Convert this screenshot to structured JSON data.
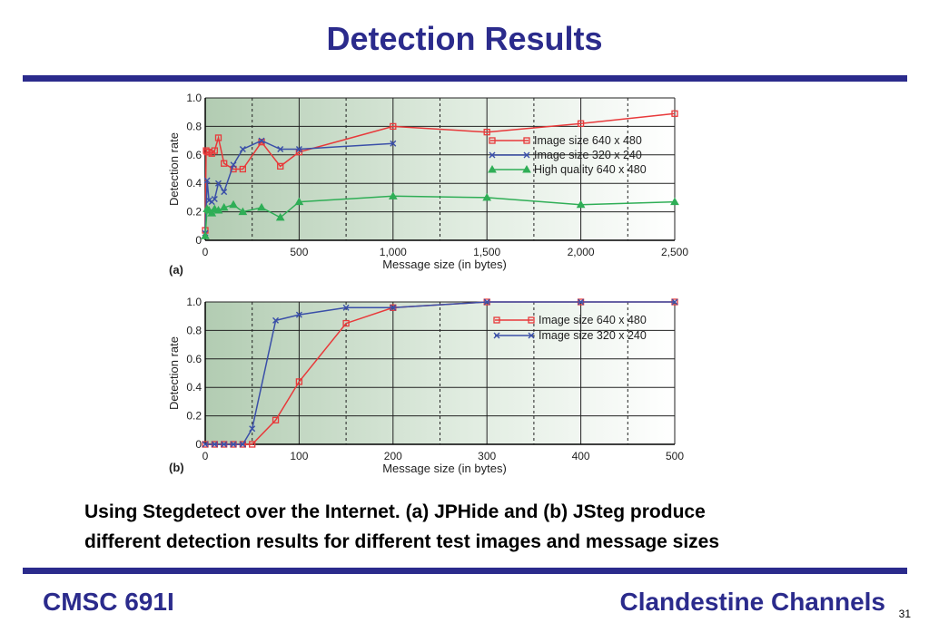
{
  "slide": {
    "title": "Detection Results",
    "caption_line1": "Using Stegdetect over the Internet. (a) JPHide and (b) JSteg produce",
    "caption_line2": "different detection results for different test images and message sizes",
    "footer_left": "CMSC 691I",
    "footer_right": "Clandestine Channels",
    "page_number": "31"
  },
  "colors": {
    "accent": "#2b2b8c",
    "red": "#e8393a",
    "blue": "#3a4fa8",
    "green": "#2fae56"
  },
  "chart_data": [
    {
      "type": "line",
      "panel_label": "(a)",
      "xlabel": "Message size (in bytes)",
      "ylabel": "Detection rate",
      "xlim": [
        0,
        2500
      ],
      "ylim": [
        0,
        1.0
      ],
      "x_ticks": [
        0,
        500,
        1000,
        1500,
        2000,
        2500
      ],
      "x_tick_labels": [
        "0",
        "500",
        "1,000",
        "1,500",
        "2,000",
        "2,500"
      ],
      "y_ticks": [
        0,
        0.2,
        0.4,
        0.6,
        0.8,
        1.0
      ],
      "y_tick_labels": [
        "0",
        "0.2",
        "0.4",
        "0.6",
        "0.8",
        "1.0"
      ],
      "grid": true,
      "legend_position": "right",
      "series": [
        {
          "name": "Image size 640 x 480",
          "color": "#e8393a",
          "marker": "square",
          "x": [
            0,
            5,
            10,
            20,
            35,
            50,
            70,
            100,
            150,
            200,
            300,
            400,
            500,
            1000,
            1500,
            2000,
            2500
          ],
          "y": [
            0.07,
            0.63,
            0.62,
            0.62,
            0.61,
            0.63,
            0.72,
            0.54,
            0.5,
            0.5,
            0.69,
            0.52,
            0.62,
            0.8,
            0.76,
            0.82,
            0.89
          ]
        },
        {
          "name": "Image size 320 x 240",
          "color": "#3a4fa8",
          "marker": "x",
          "x": [
            0,
            10,
            20,
            35,
            50,
            70,
            100,
            150,
            200,
            300,
            400,
            500,
            1000
          ],
          "y": [
            0.05,
            0.42,
            0.28,
            0.27,
            0.29,
            0.4,
            0.34,
            0.53,
            0.64,
            0.7,
            0.64,
            0.64,
            0.68
          ]
        },
        {
          "name": "High quality 640 x 480",
          "color": "#2fae56",
          "marker": "triangle",
          "x": [
            0,
            10,
            20,
            35,
            50,
            70,
            100,
            150,
            200,
            300,
            400,
            500,
            1000,
            1500,
            2000,
            2500
          ],
          "y": [
            0.03,
            0.22,
            0.21,
            0.19,
            0.22,
            0.21,
            0.23,
            0.25,
            0.2,
            0.23,
            0.16,
            0.27,
            0.31,
            0.3,
            0.25,
            0.27
          ]
        }
      ]
    },
    {
      "type": "line",
      "panel_label": "(b)",
      "xlabel": "Message size (in bytes)",
      "ylabel": "Detection rate",
      "xlim": [
        0,
        500
      ],
      "ylim": [
        0,
        1.0
      ],
      "x_ticks": [
        0,
        100,
        200,
        300,
        400,
        500
      ],
      "x_tick_labels": [
        "0",
        "100",
        "200",
        "300",
        "400",
        "500"
      ],
      "y_ticks": [
        0,
        0.2,
        0.4,
        0.6,
        0.8,
        1.0
      ],
      "y_tick_labels": [
        "0",
        "0.2",
        "0.4",
        "0.6",
        "0.8",
        "1.0"
      ],
      "grid": true,
      "legend_position": "top-right",
      "series": [
        {
          "name": "Image size 640 x 480",
          "color": "#e8393a",
          "marker": "square",
          "x": [
            0,
            10,
            20,
            30,
            40,
            50,
            75,
            100,
            150,
            200,
            300,
            400,
            500
          ],
          "y": [
            0,
            0,
            0,
            0,
            0,
            0,
            0.17,
            0.44,
            0.85,
            0.96,
            1.0,
            1.0,
            1.0
          ]
        },
        {
          "name": "Image size 320 x 240",
          "color": "#3a4fa8",
          "marker": "x",
          "x": [
            0,
            10,
            20,
            30,
            40,
            50,
            75,
            100,
            150,
            200,
            300,
            400,
            500
          ],
          "y": [
            0,
            0,
            0,
            0,
            0,
            0.11,
            0.87,
            0.91,
            0.96,
            0.96,
            1.0,
            1.0,
            1.0
          ]
        }
      ]
    }
  ]
}
